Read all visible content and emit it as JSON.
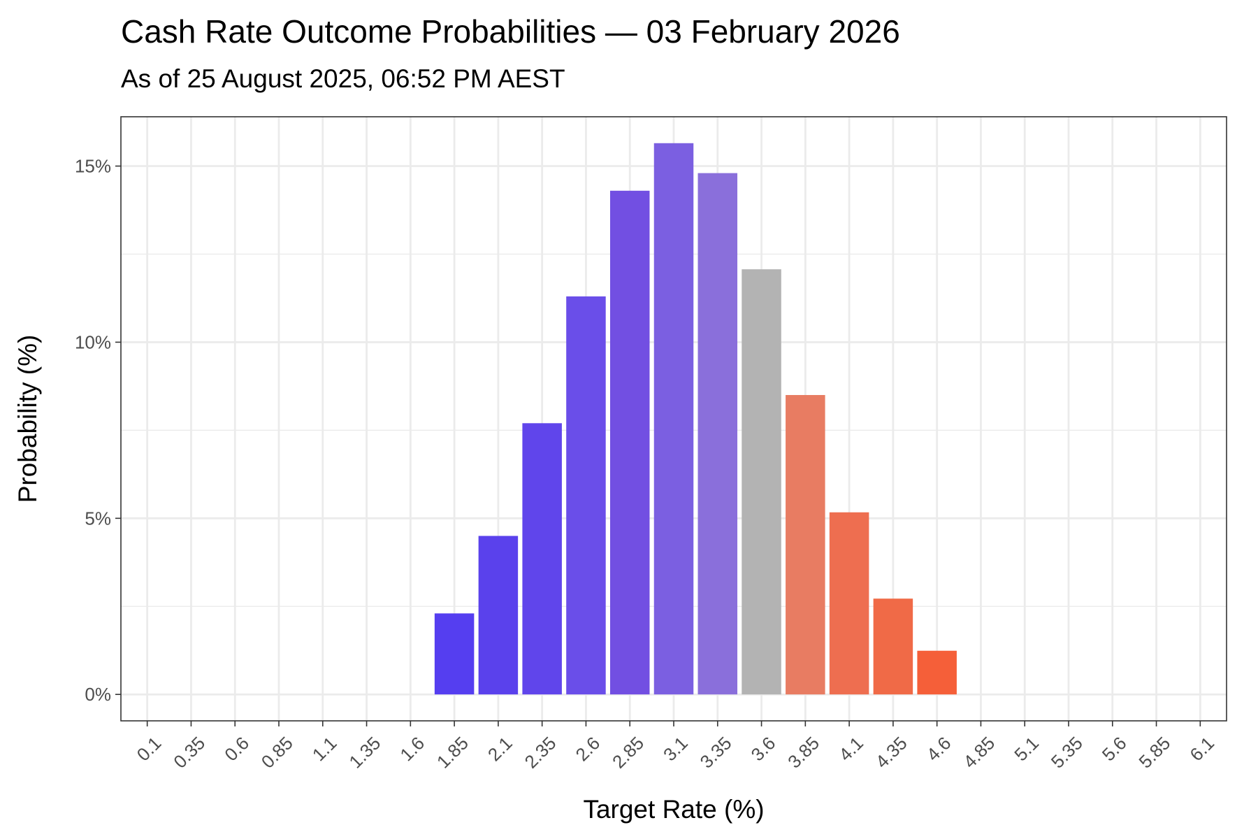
{
  "chart_data": {
    "type": "bar",
    "title": "Cash Rate Outcome Probabilities — 03 February 2026",
    "subtitle": "As of 25 August 2025, 06:52 PM AEST",
    "xlabel": "Target Rate (%)",
    "ylabel": "Probability (%)",
    "x_tick_labels": [
      "0.1",
      "0.35",
      "0.6",
      "0.85",
      "1.1",
      "1.35",
      "1.6",
      "1.85",
      "2.1",
      "2.35",
      "2.6",
      "2.85",
      "3.1",
      "3.35",
      "3.6",
      "3.85",
      "4.1",
      "4.35",
      "4.6",
      "4.85",
      "5.1",
      "5.35",
      "5.6",
      "5.85",
      "6.1"
    ],
    "y_ticks": [
      0,
      5,
      10,
      15
    ],
    "y_tick_labels": [
      "0%",
      "5%",
      "10%",
      "15%"
    ],
    "ylim": [
      -0.75,
      16.4
    ],
    "grid": true,
    "categories": [
      "1.85",
      "2.1",
      "2.35",
      "2.6",
      "2.85",
      "3.1",
      "3.35",
      "3.6",
      "3.85",
      "4.1",
      "4.35",
      "4.6"
    ],
    "values": [
      2.3,
      4.5,
      7.7,
      11.3,
      14.3,
      15.65,
      14.8,
      12.07,
      8.5,
      5.17,
      2.72,
      1.24
    ],
    "colors": [
      "#553ef0",
      "#5a41ec",
      "#6045eb",
      "#6a4ee9",
      "#724fe2",
      "#7b5fe1",
      "#8a6fdb",
      "#b3b3b3",
      "#e87c62",
      "#ee6e50",
      "#f06a47",
      "#f55f39"
    ]
  }
}
